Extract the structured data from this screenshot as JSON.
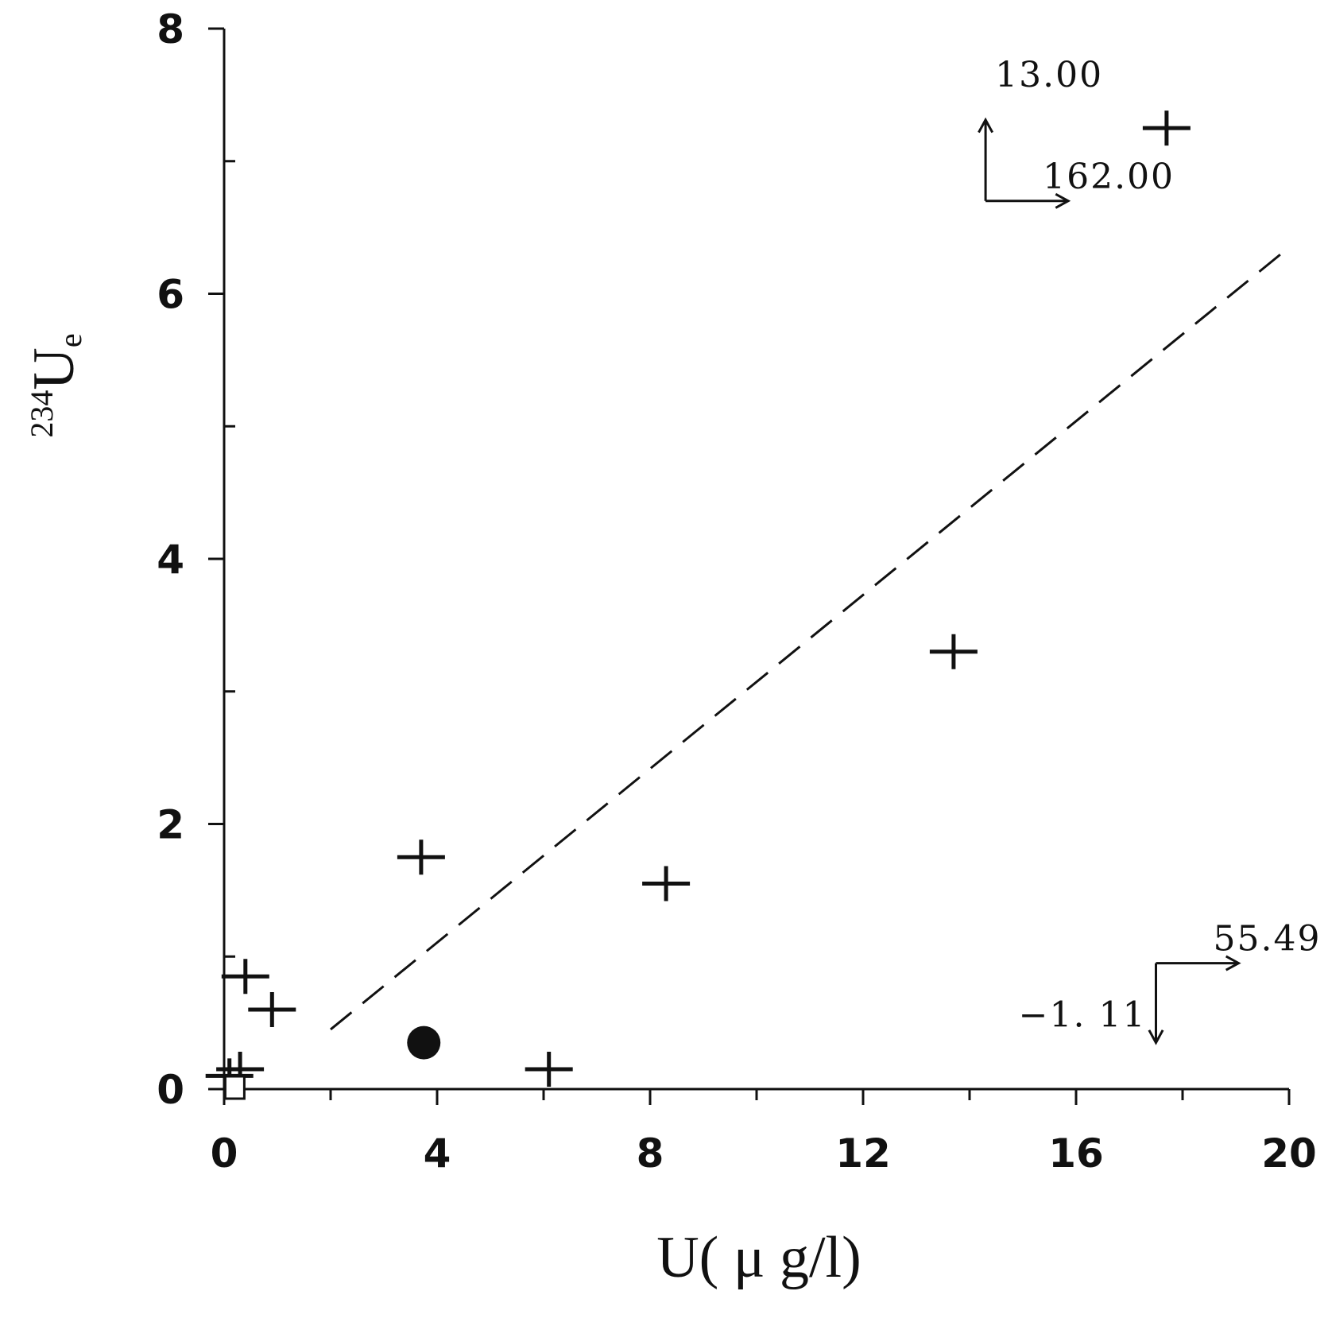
{
  "chart_data": {
    "type": "scatter",
    "title": "",
    "xlabel": "U( μ g/l)",
    "ylabel": {
      "superscript": "234",
      "main": "U",
      "subscript": "e"
    },
    "xlim": [
      0,
      20
    ],
    "ylim": [
      0,
      8
    ],
    "x_ticks": [
      0,
      4,
      8,
      12,
      16,
      20
    ],
    "y_ticks": [
      0,
      2,
      4,
      6,
      8
    ],
    "x_tick_labels": [
      "0",
      "4",
      "8",
      "12",
      "16",
      "20"
    ],
    "y_tick_labels": [
      "0",
      "2",
      "4",
      "6",
      "8"
    ],
    "grid": false,
    "legend": "none",
    "series": [
      {
        "marker": "plus",
        "points": [
          {
            "x": 0.4,
            "y": 0.85
          },
          {
            "x": 0.9,
            "y": 0.6
          },
          {
            "x": 3.7,
            "y": 1.75
          },
          {
            "x": 6.1,
            "y": 0.15
          },
          {
            "x": 8.3,
            "y": 1.55
          },
          {
            "x": 13.7,
            "y": 3.3
          },
          {
            "x": 17.7,
            "y": 7.25
          },
          {
            "x": 0.3,
            "y": 0.15
          },
          {
            "x": 0.1,
            "y": 0.1
          }
        ]
      },
      {
        "marker": "filled-circle",
        "points": [
          {
            "x": 3.75,
            "y": 0.35
          }
        ]
      },
      {
        "marker": "open-square",
        "points": [
          {
            "x": 0.2,
            "y": 0.0
          }
        ]
      }
    ],
    "trend_line": {
      "style": "dashed",
      "from": {
        "x": 2.0,
        "y": 0.45
      },
      "to": {
        "x": 20.0,
        "y": 6.35
      }
    },
    "off_scale_annotations": [
      {
        "label": "13.00",
        "anchor": {
          "x": 14.3,
          "y": 6.7
        },
        "arrow": "up"
      },
      {
        "label": "162.00",
        "anchor": {
          "x": 14.3,
          "y": 6.7
        },
        "arrow": "right"
      },
      {
        "label": "55.49",
        "anchor": {
          "x": 17.5,
          "y": 0.95
        },
        "arrow": "right"
      },
      {
        "label": "−1. 11",
        "anchor": {
          "x": 17.5,
          "y": 0.95
        },
        "arrow": "down"
      }
    ]
  }
}
